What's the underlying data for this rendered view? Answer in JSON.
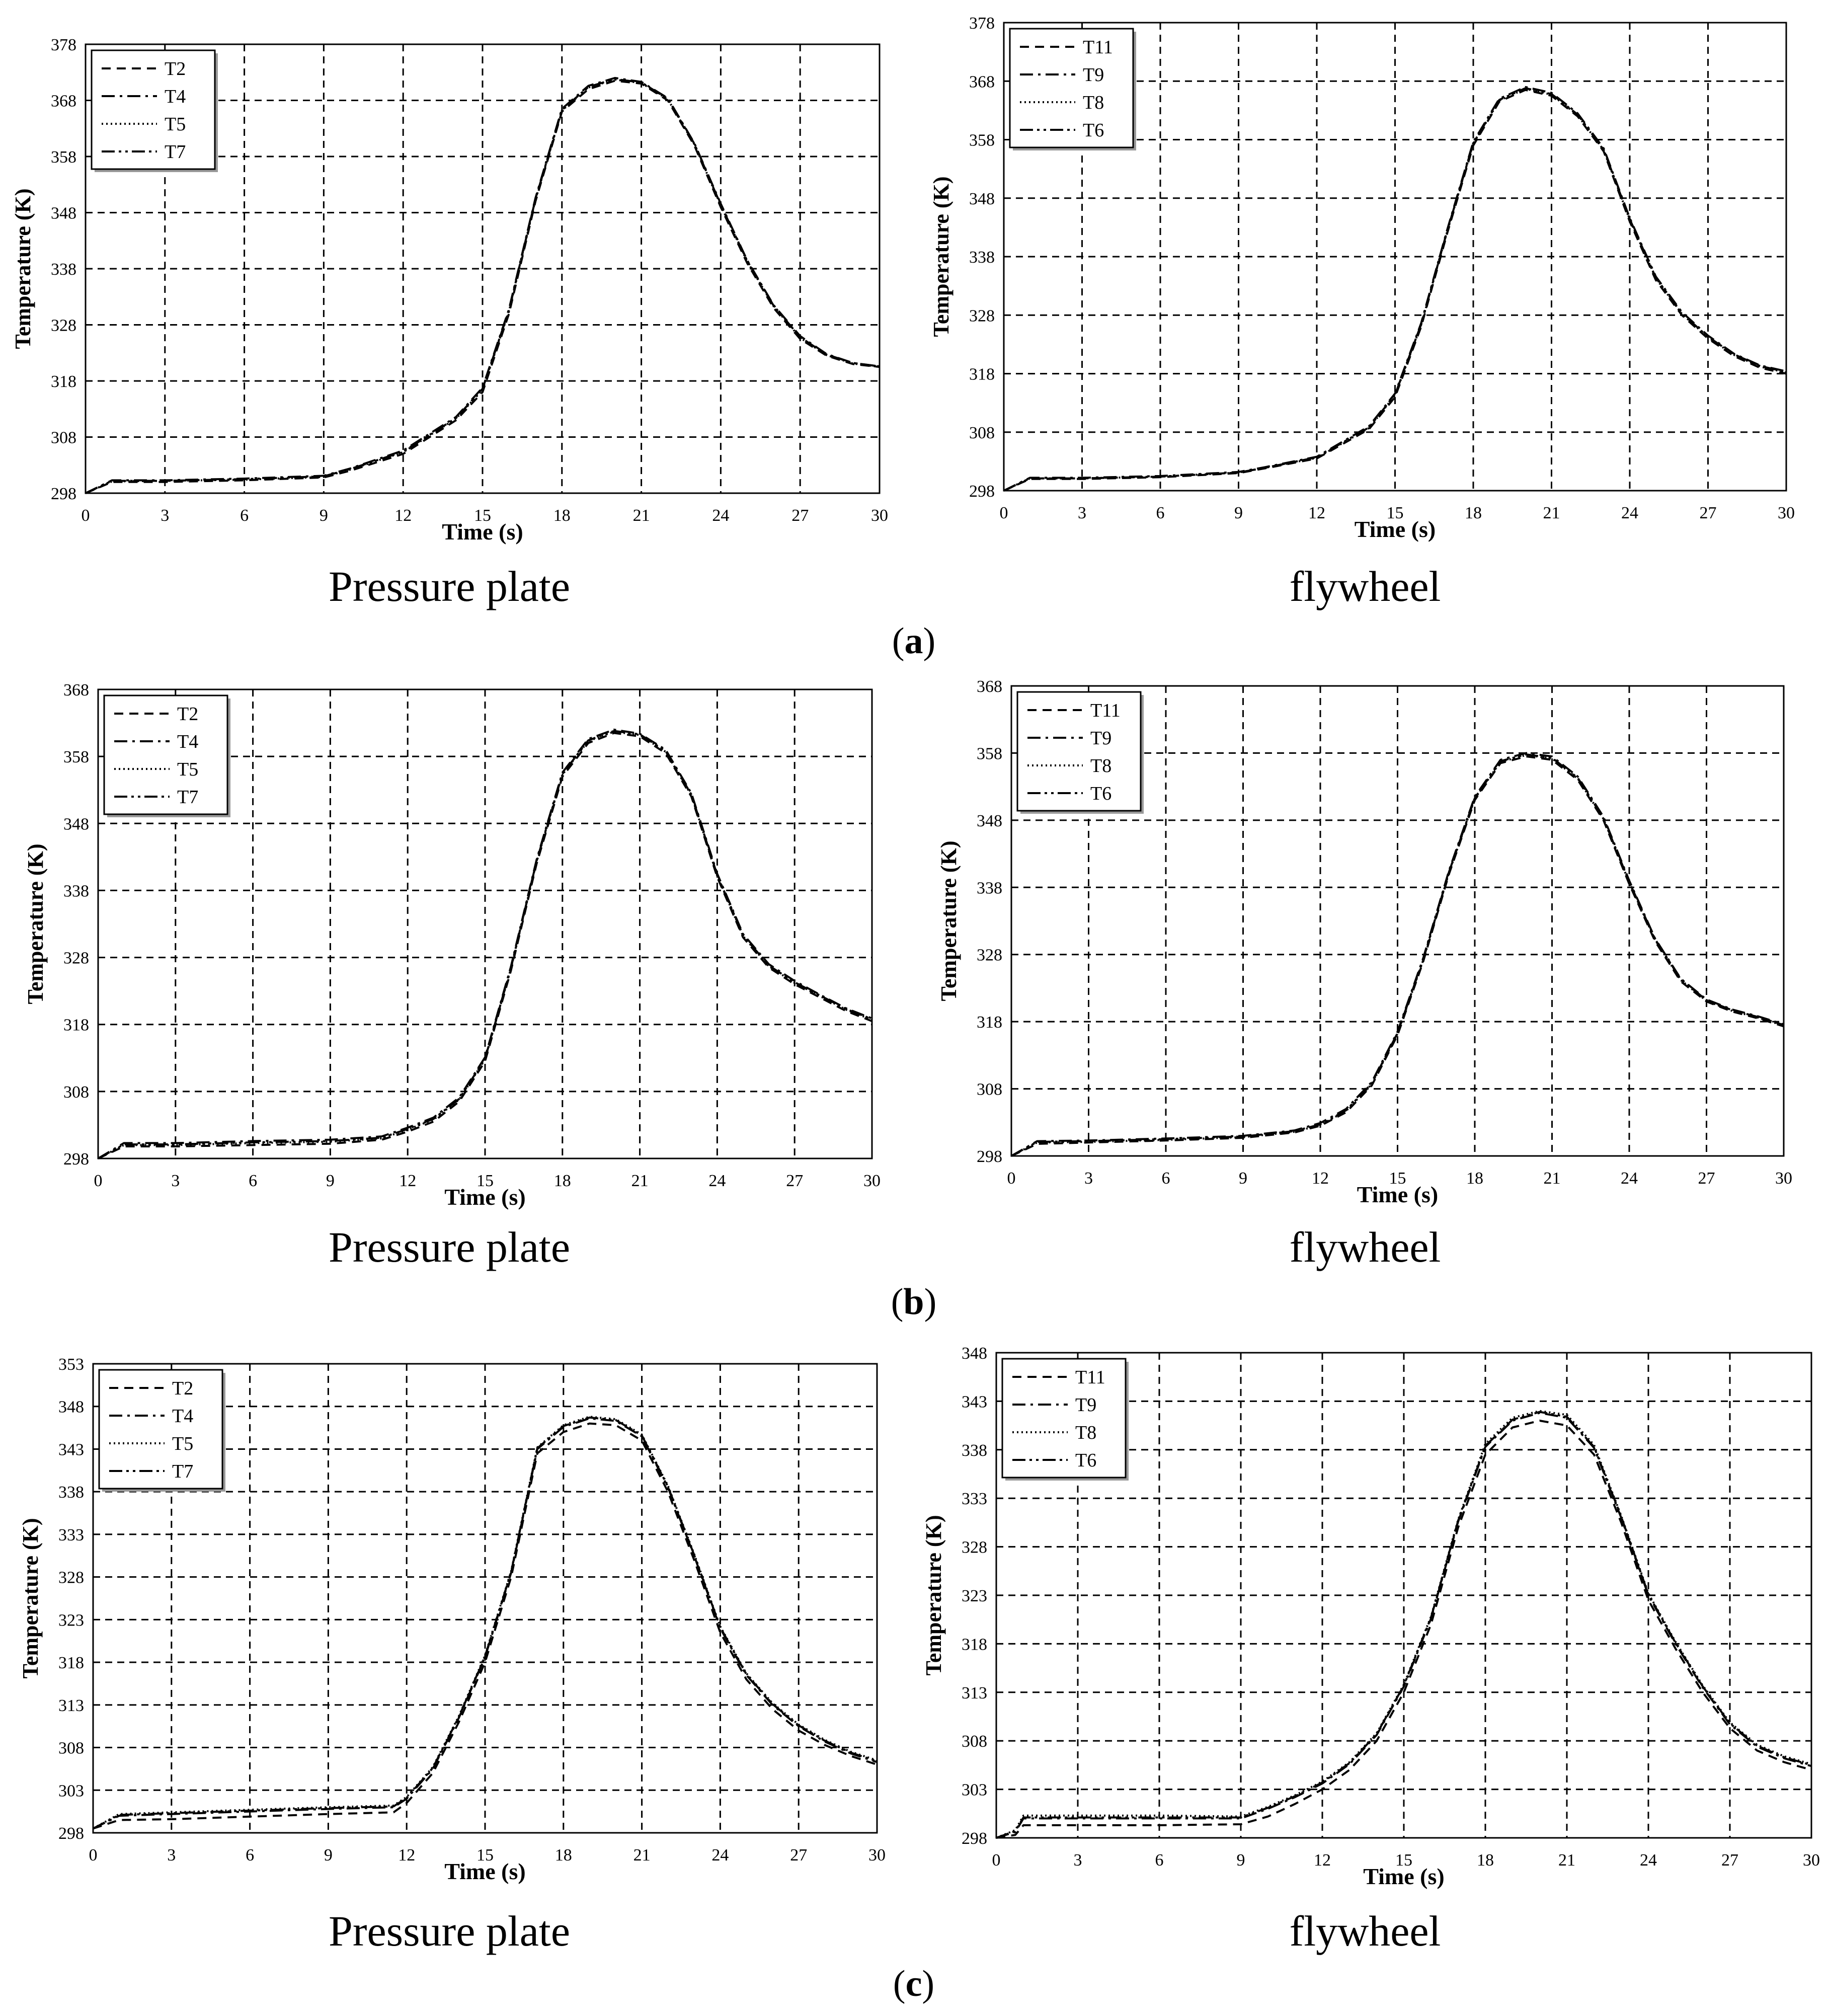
{
  "panels": [
    {
      "label": "a",
      "left_caption": "Pressure plate",
      "right_caption": "flywheel"
    },
    {
      "label": "b",
      "left_caption": "Pressure plate",
      "right_caption": "flywheel"
    },
    {
      "label": "c",
      "left_caption": "Pressure plate",
      "right_caption": "flywheel"
    }
  ],
  "chart_data": [
    {
      "id": "a-pressure-plate",
      "type": "line",
      "title": "Pressure plate",
      "xlabel": "Time (s)",
      "ylabel": "Temperature (K)",
      "xlim": [
        0,
        30
      ],
      "ylim": [
        298,
        378
      ],
      "xticks": [
        0,
        3,
        6,
        9,
        12,
        15,
        18,
        21,
        24,
        27,
        30
      ],
      "yticks": [
        298,
        308,
        318,
        328,
        338,
        348,
        358,
        368,
        378
      ],
      "grid": true,
      "legend_position": "top-left",
      "x": [
        0,
        1,
        3,
        6,
        9,
        10,
        12,
        14,
        15,
        16,
        17,
        18,
        19,
        20,
        21,
        22,
        23,
        24,
        25,
        26,
        27,
        28,
        29,
        30
      ],
      "series": [
        {
          "name": "T2",
          "dash": "dashed",
          "values": [
            298,
            300,
            300,
            300.3,
            300.8,
            302,
            305,
            311,
            316,
            330,
            350,
            366,
            370,
            371.5,
            371,
            368,
            360,
            349,
            339,
            331,
            325.5,
            322.5,
            321,
            320.5
          ]
        },
        {
          "name": "T4",
          "dash": "dashdot",
          "values": [
            298,
            300.3,
            300.3,
            300.6,
            301.1,
            302.4,
            305.6,
            311.6,
            316.8,
            330.8,
            350.6,
            366.5,
            370.6,
            372,
            371.3,
            368.4,
            360.4,
            349.6,
            339.5,
            331.5,
            326,
            322.8,
            321.2,
            320.6
          ]
        },
        {
          "name": "T5",
          "dash": "dotted",
          "values": [
            298,
            300.1,
            300.2,
            300.4,
            300.9,
            302.2,
            305.3,
            311.3,
            316.4,
            330.4,
            350.3,
            366.2,
            370.3,
            371.7,
            371.1,
            368.2,
            360.2,
            349.3,
            339.3,
            331.3,
            325.7,
            322.6,
            321.1,
            320.5
          ]
        },
        {
          "name": "T7",
          "dash": "dashdotdot",
          "values": [
            298,
            300.2,
            300.2,
            300.5,
            301,
            302.3,
            305.4,
            311.4,
            316.6,
            330.6,
            350.4,
            366.3,
            370.4,
            371.8,
            371.2,
            368.3,
            360.3,
            349.4,
            339.4,
            331.4,
            325.8,
            322.7,
            321.2,
            320.6
          ]
        }
      ]
    },
    {
      "id": "a-flywheel",
      "type": "line",
      "title": "flywheel",
      "xlabel": "Time (s)",
      "ylabel": "Temperature (K)",
      "xlim": [
        0,
        30
      ],
      "ylim": [
        298,
        378
      ],
      "xticks": [
        0,
        3,
        6,
        9,
        12,
        15,
        18,
        21,
        24,
        27,
        30
      ],
      "yticks": [
        298,
        308,
        318,
        328,
        338,
        348,
        358,
        368,
        378
      ],
      "grid": true,
      "legend_position": "top-left",
      "x": [
        0,
        1,
        3,
        6,
        9,
        10,
        12,
        14,
        15,
        16,
        17,
        18,
        19,
        20,
        21,
        22,
        23,
        24,
        25,
        26,
        27,
        28,
        29,
        30
      ],
      "series": [
        {
          "name": "T11",
          "dash": "dashed",
          "values": [
            298,
            300,
            300,
            300.3,
            301,
            301.8,
            303.5,
            308.5,
            314,
            326,
            342,
            357,
            364.5,
            366.5,
            365.5,
            362,
            356,
            344,
            334,
            328,
            324,
            321,
            319,
            318
          ]
        },
        {
          "name": "T9",
          "dash": "dashdot",
          "values": [
            298,
            300.2,
            300.2,
            300.5,
            301.2,
            302,
            303.8,
            309,
            314.6,
            326.6,
            342.6,
            357.6,
            365,
            367,
            366,
            362.5,
            356.5,
            344.6,
            334.6,
            328.5,
            324.5,
            321.4,
            319.4,
            318.4
          ]
        },
        {
          "name": "T8",
          "dash": "dotted",
          "values": [
            298,
            300.1,
            300.1,
            300.4,
            301.1,
            301.9,
            303.6,
            308.7,
            314.3,
            326.3,
            342.3,
            357.3,
            364.7,
            366.7,
            365.7,
            362.2,
            356.2,
            344.3,
            334.3,
            328.2,
            324.2,
            321.2,
            319.2,
            318.2
          ]
        },
        {
          "name": "T6",
          "dash": "dashdotdot",
          "values": [
            298,
            300.1,
            300.1,
            300.4,
            301.1,
            301.9,
            303.7,
            308.8,
            314.4,
            326.4,
            342.4,
            357.4,
            364.8,
            366.8,
            365.8,
            362.3,
            356.3,
            344.4,
            334.4,
            328.3,
            324.3,
            321.3,
            319.3,
            318.3
          ]
        }
      ]
    },
    {
      "id": "b-pressure-plate",
      "type": "line",
      "title": "Pressure plate",
      "xlabel": "Time (s)",
      "ylabel": "Temperature (K)",
      "xlim": [
        0,
        30
      ],
      "ylim": [
        298,
        368
      ],
      "xticks": [
        0,
        3,
        6,
        9,
        12,
        15,
        18,
        21,
        24,
        27,
        30
      ],
      "yticks": [
        298,
        308,
        318,
        328,
        338,
        348,
        358,
        368
      ],
      "grid": true,
      "legend_position": "top-left",
      "x": [
        0,
        1,
        3,
        6,
        9,
        11,
        12,
        13,
        14,
        15,
        16,
        17,
        18,
        19,
        20,
        21,
        22,
        23,
        24,
        25,
        26,
        27,
        28,
        29,
        30
      ],
      "series": [
        {
          "name": "T2",
          "dash": "dashed",
          "values": [
            298,
            299.8,
            299.8,
            300,
            300.2,
            300.8,
            302,
            303.5,
            306.5,
            312.5,
            326,
            342,
            355,
            360,
            361.5,
            361,
            358.5,
            352,
            340,
            331,
            326.5,
            324,
            322,
            320,
            318.5
          ]
        },
        {
          "name": "T4",
          "dash": "dashdot",
          "values": [
            298,
            300.3,
            300.3,
            300.6,
            300.8,
            301.3,
            302.6,
            304.1,
            307.1,
            313.1,
            326.6,
            342.6,
            355.6,
            360.6,
            362,
            361.4,
            359,
            352.5,
            340.5,
            331.5,
            327,
            324.5,
            322.4,
            320.4,
            318.9
          ]
        },
        {
          "name": "T5",
          "dash": "dotted",
          "values": [
            298,
            300,
            300,
            300.3,
            300.5,
            301,
            302.3,
            303.8,
            306.8,
            312.8,
            326.3,
            342.3,
            355.3,
            360.3,
            361.7,
            361.2,
            358.7,
            352.2,
            340.2,
            331.2,
            326.7,
            324.2,
            322.2,
            320.2,
            318.7
          ]
        },
        {
          "name": "T7",
          "dash": "dashdotdot",
          "values": [
            298,
            300.1,
            300.1,
            300.4,
            300.6,
            301.1,
            302.4,
            303.9,
            306.9,
            312.9,
            326.4,
            342.4,
            355.4,
            360.4,
            361.8,
            361.3,
            358.8,
            352.3,
            340.3,
            331.3,
            326.8,
            324.3,
            322.3,
            320.3,
            318.8
          ]
        }
      ]
    },
    {
      "id": "b-flywheel",
      "type": "line",
      "title": "flywheel",
      "xlabel": "Time (s)",
      "ylabel": "Temperature (K)",
      "xlim": [
        0,
        30
      ],
      "ylim": [
        298,
        368
      ],
      "xticks": [
        0,
        3,
        6,
        9,
        12,
        15,
        18,
        21,
        24,
        27,
        30
      ],
      "yticks": [
        298,
        308,
        318,
        328,
        338,
        348,
        358,
        368
      ],
      "grid": true,
      "legend_position": "top-left",
      "x": [
        0,
        1,
        3,
        6,
        9,
        11,
        12,
        13,
        14,
        15,
        16,
        17,
        18,
        19,
        20,
        21,
        22,
        23,
        24,
        25,
        26,
        27,
        28,
        29,
        30
      ],
      "series": [
        {
          "name": "T11",
          "dash": "dashed",
          "values": [
            298,
            299.8,
            300,
            300.3,
            300.7,
            301.5,
            302.5,
            304.5,
            308.5,
            316,
            327,
            340,
            351,
            356.5,
            357.5,
            357,
            354,
            348,
            338.5,
            330,
            324,
            321,
            319.5,
            318.5,
            317.3
          ]
        },
        {
          "name": "T9",
          "dash": "dashdot",
          "values": [
            298,
            300.2,
            300.3,
            300.6,
            301,
            301.8,
            302.9,
            305,
            309,
            316.5,
            327.5,
            340.5,
            351.5,
            357,
            358,
            357.5,
            354.5,
            348.5,
            339,
            330.4,
            324.4,
            321.3,
            319.8,
            318.8,
            317.6
          ]
        },
        {
          "name": "T8",
          "dash": "dotted",
          "values": [
            298,
            300,
            300.1,
            300.4,
            300.8,
            301.6,
            302.6,
            304.7,
            308.7,
            316.2,
            327.2,
            340.2,
            351.2,
            356.7,
            357.7,
            357.2,
            354.2,
            348.2,
            338.7,
            330.2,
            324.2,
            321.1,
            319.6,
            318.6,
            317.4
          ]
        },
        {
          "name": "T6",
          "dash": "dashdotdot",
          "values": [
            298,
            300.1,
            300.2,
            300.5,
            300.9,
            301.7,
            302.7,
            304.8,
            308.8,
            316.3,
            327.3,
            340.3,
            351.3,
            356.8,
            357.8,
            357.3,
            354.3,
            348.3,
            338.8,
            330.3,
            324.3,
            321.2,
            319.7,
            318.7,
            317.5
          ]
        }
      ]
    },
    {
      "id": "c-pressure-plate",
      "type": "line",
      "title": "Pressure plate",
      "xlabel": "Time (s)",
      "ylabel": "Temperature (K)",
      "xlim": [
        0,
        30
      ],
      "ylim": [
        298,
        353
      ],
      "xticks": [
        0,
        3,
        6,
        9,
        12,
        15,
        18,
        21,
        24,
        27,
        30
      ],
      "yticks": [
        298,
        303,
        308,
        313,
        318,
        323,
        328,
        333,
        338,
        343,
        348,
        353
      ],
      "grid": true,
      "legend_position": "top-left",
      "x": [
        0,
        1,
        3,
        6,
        9,
        11.5,
        12,
        13,
        14,
        15,
        16,
        17,
        18,
        19,
        20,
        21,
        22,
        23,
        24,
        25,
        26,
        27,
        28,
        29,
        30
      ],
      "series": [
        {
          "name": "T2",
          "dash": "dashed",
          "values": [
            298.5,
            299.5,
            299.6,
            299.9,
            300.2,
            300.4,
            301.5,
            305,
            311,
            318,
            328,
            342.5,
            345,
            346,
            345.8,
            344,
            338,
            330,
            321.5,
            316,
            312.5,
            310,
            308.3,
            307,
            306
          ]
        },
        {
          "name": "T4",
          "dash": "dashdot",
          "values": [
            298.5,
            300,
            300.2,
            300.5,
            300.8,
            301,
            302,
            305.5,
            311.5,
            318.6,
            328.5,
            343,
            345.6,
            346.6,
            346.3,
            344.5,
            338.5,
            330.5,
            322,
            316.5,
            313,
            310.5,
            308.7,
            307.3,
            306.3
          ]
        },
        {
          "name": "T5",
          "dash": "dotted",
          "values": [
            298.5,
            300.2,
            300.4,
            300.7,
            301,
            301.2,
            302.2,
            305.7,
            311.7,
            318.8,
            328.7,
            343.2,
            345.8,
            346.8,
            346.5,
            344.7,
            338.7,
            330.7,
            322.2,
            316.7,
            313.2,
            310.7,
            308.9,
            307.5,
            306.5
          ]
        },
        {
          "name": "T7",
          "dash": "dashdotdot",
          "values": [
            298.5,
            300.1,
            300.3,
            300.6,
            300.9,
            301.1,
            302.1,
            305.6,
            311.6,
            318.7,
            328.6,
            343.1,
            345.7,
            346.7,
            346.4,
            344.6,
            338.6,
            330.6,
            322.1,
            316.6,
            313.1,
            310.6,
            308.8,
            307.4,
            306.4
          ]
        }
      ]
    },
    {
      "id": "c-flywheel",
      "type": "line",
      "title": "flywheel",
      "xlabel": "Time (s)",
      "ylabel": "Temperature (K)",
      "xlim": [
        0,
        30
      ],
      "ylim": [
        298,
        348
      ],
      "xticks": [
        0,
        3,
        6,
        9,
        12,
        15,
        18,
        21,
        24,
        27,
        30
      ],
      "yticks": [
        298,
        303,
        308,
        313,
        318,
        323,
        328,
        333,
        338,
        343,
        348
      ],
      "grid": true,
      "legend_position": "top-left",
      "x": [
        0,
        0.7,
        1,
        3,
        6,
        9,
        10,
        11,
        12,
        13,
        14,
        15,
        16,
        17,
        18,
        19,
        20,
        21,
        22,
        23,
        24,
        25,
        26,
        27,
        28,
        29,
        30
      ],
      "series": [
        {
          "name": "T11",
          "dash": "dashed",
          "values": [
            298,
            298.3,
            299.3,
            299.3,
            299.3,
            299.4,
            300.2,
            301.5,
            303,
            305,
            308,
            313,
            320,
            330,
            337.5,
            340.3,
            341,
            340.5,
            337.5,
            330.5,
            322.5,
            317.5,
            313,
            309.3,
            307,
            305.8,
            305
          ]
        },
        {
          "name": "T9",
          "dash": "dashdot",
          "values": [
            298,
            298.6,
            300,
            300,
            300,
            300,
            301,
            302.2,
            303.6,
            305.6,
            308.6,
            313.6,
            320.6,
            330.6,
            338.3,
            341,
            341.8,
            341.3,
            338.2,
            331,
            323,
            318,
            313.5,
            309.7,
            307.4,
            306.2,
            305.4
          ]
        },
        {
          "name": "T8",
          "dash": "dotted",
          "values": [
            298,
            298.8,
            300.3,
            300.3,
            300.3,
            300.2,
            301.2,
            302.4,
            303.8,
            305.8,
            308.8,
            313.8,
            320.8,
            330.8,
            338.6,
            341.3,
            342,
            341.6,
            338.5,
            331.2,
            323.2,
            318.2,
            313.7,
            309.9,
            307.6,
            306.4,
            305.6
          ]
        },
        {
          "name": "T6",
          "dash": "dashdotdot",
          "values": [
            298,
            298.7,
            300.1,
            300.1,
            300.1,
            300.1,
            301.1,
            302.3,
            303.7,
            305.7,
            308.7,
            313.7,
            320.7,
            330.7,
            338.4,
            341.1,
            341.9,
            341.4,
            338.3,
            331.1,
            323.1,
            318.1,
            313.6,
            309.8,
            307.5,
            306.3,
            305.5
          ]
        }
      ]
    }
  ]
}
